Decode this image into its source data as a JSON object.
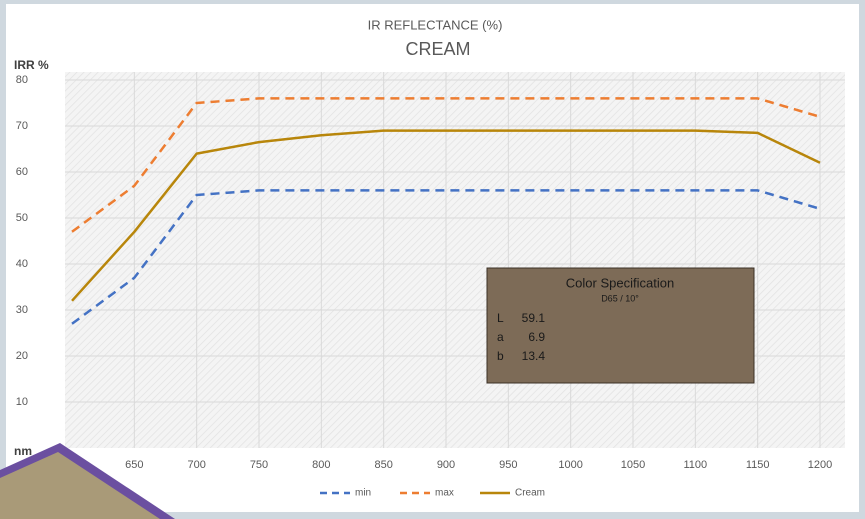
{
  "chart_data": {
    "type": "line",
    "title": "IR REFLECTANCE (%)",
    "subtitle": "CREAM",
    "y_label": "IRR %",
    "x_label": "nm",
    "x": [
      600,
      650,
      700,
      750,
      800,
      850,
      900,
      950,
      1000,
      1050,
      1100,
      1150,
      1200
    ],
    "series": [
      {
        "name": "min",
        "color": "#4472c4",
        "style": "dashed",
        "values": [
          27,
          37,
          55,
          56,
          56,
          56,
          56,
          56,
          56,
          56,
          56,
          56,
          52
        ]
      },
      {
        "name": "max",
        "color": "#ed7d31",
        "style": "dashed",
        "values": [
          47,
          57,
          75,
          76,
          76,
          76,
          76,
          76,
          76,
          76,
          76,
          76,
          72
        ]
      },
      {
        "name": "Cream",
        "color": "#b8860b",
        "style": "solid",
        "values": [
          32,
          47,
          64,
          66.5,
          68,
          69,
          69,
          69,
          69,
          69,
          69,
          68.5,
          62
        ]
      }
    ],
    "xlim": [
      600,
      1200
    ],
    "xticks": [
      650,
      700,
      750,
      800,
      850,
      900,
      950,
      1000,
      1050,
      1100,
      1150,
      1200
    ],
    "ylim": [
      0,
      80
    ],
    "yticks": [
      10,
      20,
      30,
      40,
      50,
      60,
      70,
      80
    ],
    "grid": true,
    "legend": "bottom",
    "annotation": {
      "title": "Color Specification",
      "subtitle": "D65 / 10°",
      "rows": [
        {
          "label": "L",
          "value": 59.1
        },
        {
          "label": "a",
          "value": 6.9
        },
        {
          "label": "b",
          "value": 13.4
        }
      ]
    }
  }
}
